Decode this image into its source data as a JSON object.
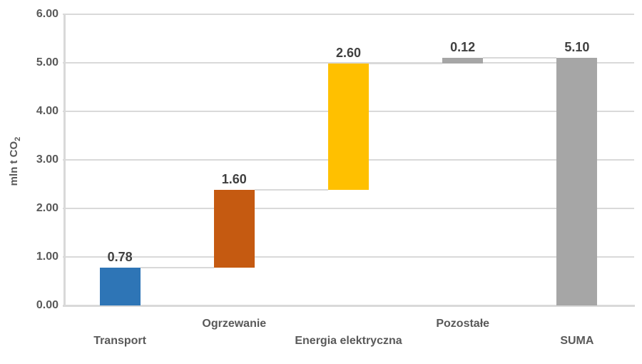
{
  "chart_data": {
    "type": "bar",
    "subtype": "waterfall",
    "title": "",
    "ylabel": "mln t CO₂",
    "ylabel_main": "mln t CO",
    "ylabel_sub": "2",
    "ylim": [
      0,
      6
    ],
    "grid": true,
    "legend": false,
    "background": "#FFFFFF",
    "yticks": [
      {
        "value": 0,
        "label": "0.00"
      },
      {
        "value": 1,
        "label": "1.00"
      },
      {
        "value": 2,
        "label": "2.00"
      },
      {
        "value": 3,
        "label": "3.00"
      },
      {
        "value": 4,
        "label": "4.00"
      },
      {
        "value": 5,
        "label": "5.00"
      },
      {
        "value": 6,
        "label": "6.00"
      }
    ],
    "categories": [
      "Transport",
      "Ogrzewanie",
      "Energia elektryczna",
      "Pozostałe",
      "SUMA"
    ],
    "values": [
      0.78,
      1.6,
      2.6,
      0.12,
      5.1
    ],
    "bars": [
      {
        "id": "transport",
        "category": "Transport",
        "label": "0.78",
        "value": 0.78,
        "start": 0,
        "end": 0.78,
        "color": "#2E75B6",
        "role": "increase"
      },
      {
        "id": "ogrzewanie",
        "category": "Ogrzewanie",
        "label": "1.60",
        "value": 1.6,
        "start": 0.78,
        "end": 2.38,
        "color": "#C55A11",
        "role": "increase"
      },
      {
        "id": "energia-elektryczna",
        "category": "Energia elektryczna",
        "label": "2.60",
        "value": 2.6,
        "start": 2.38,
        "end": 4.98,
        "color": "#FFC000",
        "role": "increase"
      },
      {
        "id": "pozostale",
        "category": "Pozostałe",
        "label": "0.12",
        "value": 0.12,
        "start": 4.98,
        "end": 5.1,
        "color": "#A6A6A6",
        "role": "increase"
      },
      {
        "id": "suma",
        "category": "SUMA",
        "label": "5.10",
        "value": 5.1,
        "start": 0,
        "end": 5.1,
        "color": "#A6A6A6",
        "role": "total"
      }
    ],
    "colors": {
      "grid": "#D9D9D9",
      "axis": "#D9D9D9",
      "connector": "#D9D9D9",
      "tick_label": "#595959",
      "category_label": "#595959",
      "data_label": "#404040"
    }
  }
}
